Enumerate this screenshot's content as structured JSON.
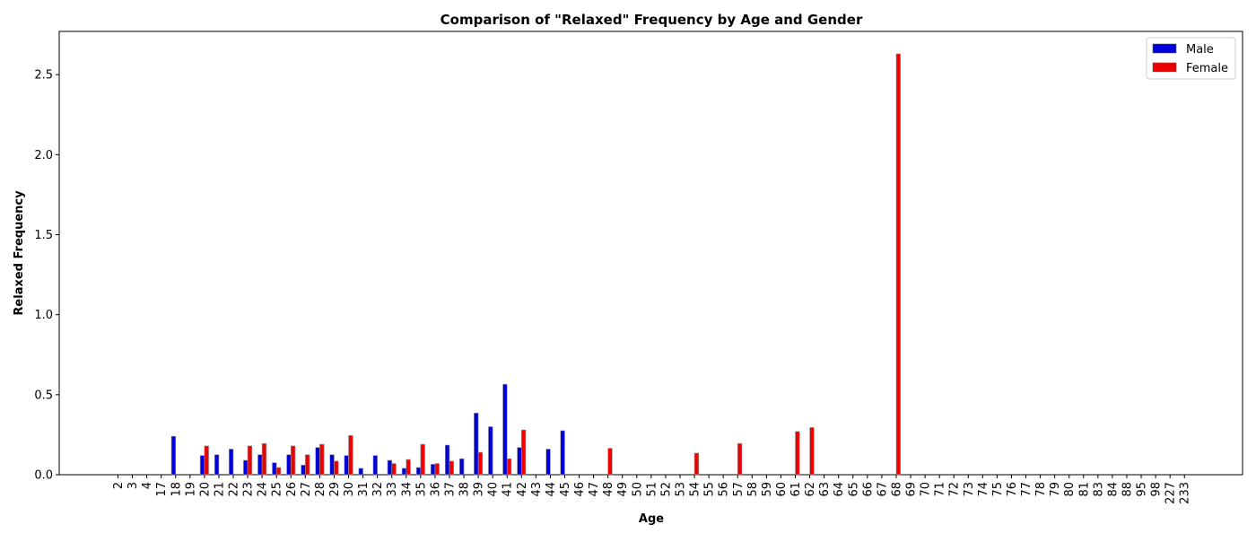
{
  "chart_data": {
    "type": "bar",
    "title": "Comparison of \"Relaxed\" Frequency by Age and Gender",
    "xlabel": "Age",
    "ylabel": "Relaxed Frequency",
    "ylim": [
      0,
      2.77
    ],
    "yticks": [
      "0.0",
      "0.5",
      "1.0",
      "1.5",
      "2.0",
      "2.5"
    ],
    "grid": false,
    "legend_position": "top-right",
    "categories": [
      "2",
      "3",
      "4",
      "17",
      "18",
      "19",
      "20",
      "21",
      "22",
      "23",
      "24",
      "25",
      "26",
      "27",
      "28",
      "29",
      "30",
      "31",
      "32",
      "33",
      "34",
      "35",
      "36",
      "37",
      "38",
      "39",
      "40",
      "41",
      "42",
      "43",
      "44",
      "45",
      "46",
      "47",
      "48",
      "49",
      "50",
      "51",
      "52",
      "53",
      "54",
      "55",
      "56",
      "57",
      "58",
      "59",
      "60",
      "61",
      "62",
      "63",
      "64",
      "65",
      "66",
      "67",
      "68",
      "69",
      "70",
      "71",
      "72",
      "73",
      "74",
      "75",
      "76",
      "77",
      "78",
      "79",
      "80",
      "81",
      "83",
      "84",
      "88",
      "95",
      "98",
      "227",
      "233"
    ],
    "series": [
      {
        "name": "Male",
        "color": "#0000dd",
        "values": [
          0,
          0,
          0,
          0,
          0.24,
          0,
          0.12,
          0.125,
          0.16,
          0.09,
          0.125,
          0.075,
          0.125,
          0.06,
          0.17,
          0.125,
          0.12,
          0.04,
          0.12,
          0.09,
          0.04,
          0.045,
          0.065,
          0.185,
          0.1,
          0.385,
          0.3,
          0.565,
          0.17,
          0,
          0.16,
          0.275,
          0,
          0,
          0,
          0,
          0,
          0,
          0,
          0,
          0,
          0,
          0,
          0,
          0,
          0,
          0,
          0,
          0,
          0,
          0,
          0,
          0,
          0,
          0,
          0,
          0,
          0,
          0,
          0,
          0,
          0,
          0,
          0,
          0,
          0,
          0,
          0,
          0,
          0,
          0,
          0,
          0,
          0,
          0
        ]
      },
      {
        "name": "Female",
        "color": "#ee0000",
        "values": [
          0,
          0,
          0,
          0,
          0,
          0,
          0.18,
          0,
          0,
          0.18,
          0.195,
          0.045,
          0.18,
          0.125,
          0.19,
          0.085,
          0.245,
          0,
          0,
          0.07,
          0.095,
          0.19,
          0.07,
          0.085,
          0,
          0.14,
          0,
          0.1,
          0.28,
          0,
          0,
          0,
          0,
          0,
          0.165,
          0,
          0,
          0,
          0,
          0,
          0.135,
          0,
          0,
          0.195,
          0,
          0,
          0,
          0.27,
          0.295,
          0,
          0,
          0,
          0,
          0,
          2.63,
          0,
          0,
          0,
          0,
          0,
          0,
          0,
          0,
          0,
          0,
          0,
          0,
          0,
          0,
          0,
          0,
          0,
          0,
          0,
          0
        ]
      }
    ]
  }
}
